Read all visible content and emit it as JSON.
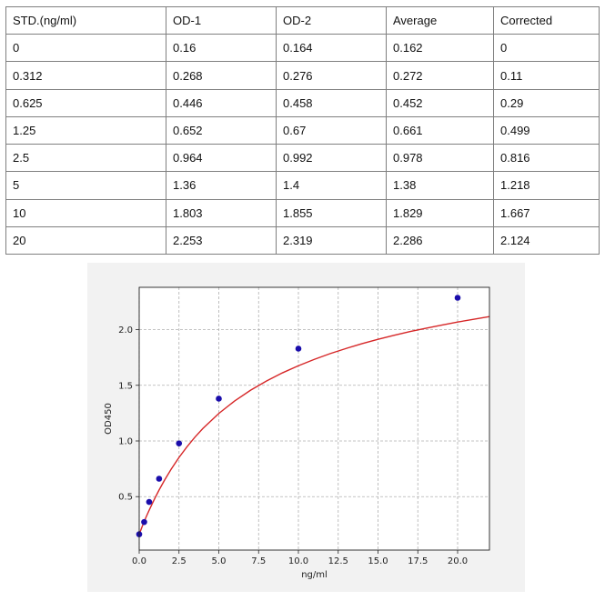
{
  "table": {
    "headers": [
      "STD.(ng/ml)",
      "OD-1",
      "OD-2",
      "Average",
      "Corrected"
    ],
    "rows": [
      [
        "0",
        "0.16",
        "0.164",
        "0.162",
        "0"
      ],
      [
        "0.312",
        "0.268",
        "0.276",
        "0.272",
        "0.11"
      ],
      [
        "0.625",
        "0.446",
        "0.458",
        "0.452",
        "0.29"
      ],
      [
        "1.25",
        "0.652",
        "0.67",
        "0.661",
        "0.499"
      ],
      [
        "2.5",
        "0.964",
        "0.992",
        "0.978",
        "0.816"
      ],
      [
        "5",
        "1.36",
        "1.4",
        "1.38",
        "1.218"
      ],
      [
        "10",
        "1.803",
        "1.855",
        "1.829",
        "1.667"
      ],
      [
        "20",
        "2.253",
        "2.319",
        "2.286",
        "2.124"
      ]
    ]
  },
  "chart_data": {
    "type": "scatter",
    "xlabel": "ng/ml",
    "ylabel": "OD450",
    "xlim": [
      0,
      22
    ],
    "ylim": [
      0.02,
      2.38
    ],
    "grid": true,
    "x_ticks": [
      "0.0",
      "2.5",
      "5.0",
      "7.5",
      "10.0",
      "12.5",
      "15.0",
      "17.5",
      "20.0"
    ],
    "y_ticks": [
      "0.5",
      "1.0",
      "1.5",
      "2.0"
    ],
    "points": {
      "x": [
        0,
        0.312,
        0.625,
        1.25,
        2.5,
        5,
        10,
        20
      ],
      "y": [
        0.162,
        0.272,
        0.452,
        0.661,
        0.978,
        1.38,
        1.829,
        2.286
      ],
      "color": "#1a0dab"
    },
    "fit_curve": {
      "x": [
        0,
        0.1,
        0.2,
        0.312,
        0.45,
        0.625,
        0.85,
        1.0,
        1.25,
        1.6,
        2.0,
        2.5,
        3.0,
        3.5,
        4.0,
        5.0,
        6.0,
        7.0,
        8.0,
        9.0,
        10.0,
        11.0,
        12.0,
        13.0,
        14.0,
        15.0,
        16.0,
        17.0,
        18.0,
        19.0,
        20.0,
        21.0,
        22.0
      ],
      "y": [
        0.162,
        0.199,
        0.236,
        0.276,
        0.322,
        0.378,
        0.446,
        0.49,
        0.56,
        0.65,
        0.745,
        0.852,
        0.947,
        1.034,
        1.112,
        1.247,
        1.36,
        1.456,
        1.539,
        1.612,
        1.676,
        1.733,
        1.785,
        1.831,
        1.874,
        1.913,
        1.949,
        1.982,
        2.012,
        2.041,
        2.068,
        2.093,
        2.117
      ],
      "color": "#d62728"
    }
  }
}
